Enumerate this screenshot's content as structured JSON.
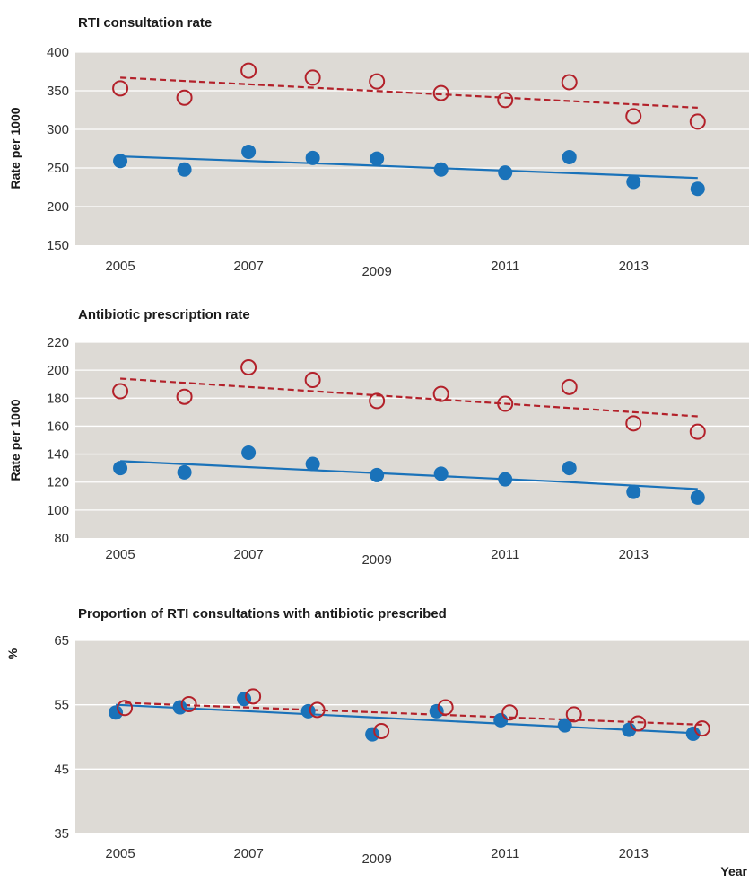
{
  "colors": {
    "background": "#dddad5",
    "grid": "#ffffff",
    "series_filled": "#1a72b9",
    "series_open": "#b3212a"
  },
  "chart_data": [
    {
      "type": "scatter",
      "title": "RTI consultation rate",
      "ylabel": "Rate per 1000",
      "xlabel": "",
      "ylim": [
        150,
        400
      ],
      "yticks": [
        150,
        200,
        250,
        300,
        350,
        400
      ],
      "xlim": [
        2004.3,
        2014.8
      ],
      "xticks": [
        "2005",
        "2007",
        "2009",
        "2011",
        "2013"
      ],
      "grid": true,
      "series": [
        {
          "marker": "filled-circle",
          "x": [
            2005,
            2006,
            2007,
            2008,
            2009,
            2010,
            2011,
            2012,
            2013,
            2014
          ],
          "y": [
            259,
            248,
            271,
            263,
            262,
            248,
            244,
            264,
            232,
            223
          ],
          "trend": {
            "style": "solid",
            "x": [
              2005,
              2008,
              2014
            ],
            "y": [
              265,
              256,
              237
            ]
          }
        },
        {
          "marker": "open-circle",
          "x": [
            2005,
            2006,
            2007,
            2008,
            2009,
            2010,
            2011,
            2012,
            2013,
            2014
          ],
          "y": [
            353,
            341,
            376,
            367,
            362,
            347,
            338,
            361,
            317,
            310
          ],
          "trend": {
            "style": "dashed",
            "x": [
              2005,
              2014
            ],
            "y": [
              367,
              328
            ]
          }
        }
      ]
    },
    {
      "type": "scatter",
      "title": "Antibiotic prescription rate",
      "ylabel": "Rate per 1000",
      "xlabel": "",
      "ylim": [
        80,
        220
      ],
      "yticks": [
        80,
        100,
        120,
        140,
        160,
        180,
        200,
        220
      ],
      "xlim": [
        2004.3,
        2014.8
      ],
      "xticks": [
        "2005",
        "2007",
        "2009",
        "2011",
        "2013"
      ],
      "grid": true,
      "series": [
        {
          "marker": "filled-circle",
          "x": [
            2005,
            2006,
            2007,
            2008,
            2009,
            2010,
            2011,
            2012,
            2013,
            2014
          ],
          "y": [
            130,
            127,
            141,
            133,
            125,
            126,
            122,
            130,
            113,
            109
          ],
          "trend": {
            "style": "solid",
            "x": [
              2005,
              2012,
              2014
            ],
            "y": [
              135,
              120,
              115
            ]
          }
        },
        {
          "marker": "open-circle",
          "x": [
            2005,
            2006,
            2007,
            2008,
            2009,
            2010,
            2011,
            2012,
            2013,
            2014
          ],
          "y": [
            185,
            181,
            202,
            193,
            178,
            183,
            176,
            188,
            162,
            156
          ],
          "trend": {
            "style": "dashed",
            "x": [
              2005,
              2014
            ],
            "y": [
              194,
              167
            ]
          }
        }
      ]
    },
    {
      "type": "scatter",
      "title": "Proportion of RTI consultations with antibiotic prescribed",
      "ylabel": "%",
      "xlabel": "Year",
      "ylim": [
        35,
        65
      ],
      "yticks": [
        35,
        45,
        55,
        65
      ],
      "xlim": [
        2004.3,
        2014.8
      ],
      "xticks": [
        "2005",
        "2007",
        "2009",
        "2011",
        "2013"
      ],
      "grid": true,
      "series": [
        {
          "marker": "filled-circle",
          "x": [
            2004.93,
            2005.93,
            2006.93,
            2007.93,
            2008.93,
            2009.93,
            2010.93,
            2011.93,
            2012.93,
            2013.93
          ],
          "y": [
            53.8,
            54.6,
            55.9,
            54.0,
            50.4,
            54.0,
            52.6,
            51.8,
            51.1,
            50.5
          ],
          "trend": {
            "style": "solid",
            "x": [
              2004.93,
              2013.93
            ],
            "y": [
              55.0,
              50.6
            ]
          }
        },
        {
          "marker": "open-circle",
          "x": [
            2005.07,
            2006.07,
            2007.07,
            2008.07,
            2009.07,
            2010.07,
            2011.07,
            2012.07,
            2013.07,
            2014.07
          ],
          "y": [
            54.5,
            55.1,
            56.3,
            54.2,
            50.9,
            54.6,
            53.8,
            53.5,
            52.1,
            51.3
          ],
          "trend": {
            "style": "dashed",
            "x": [
              2005.07,
              2014.07
            ],
            "y": [
              55.3,
              51.9
            ]
          }
        }
      ]
    }
  ]
}
